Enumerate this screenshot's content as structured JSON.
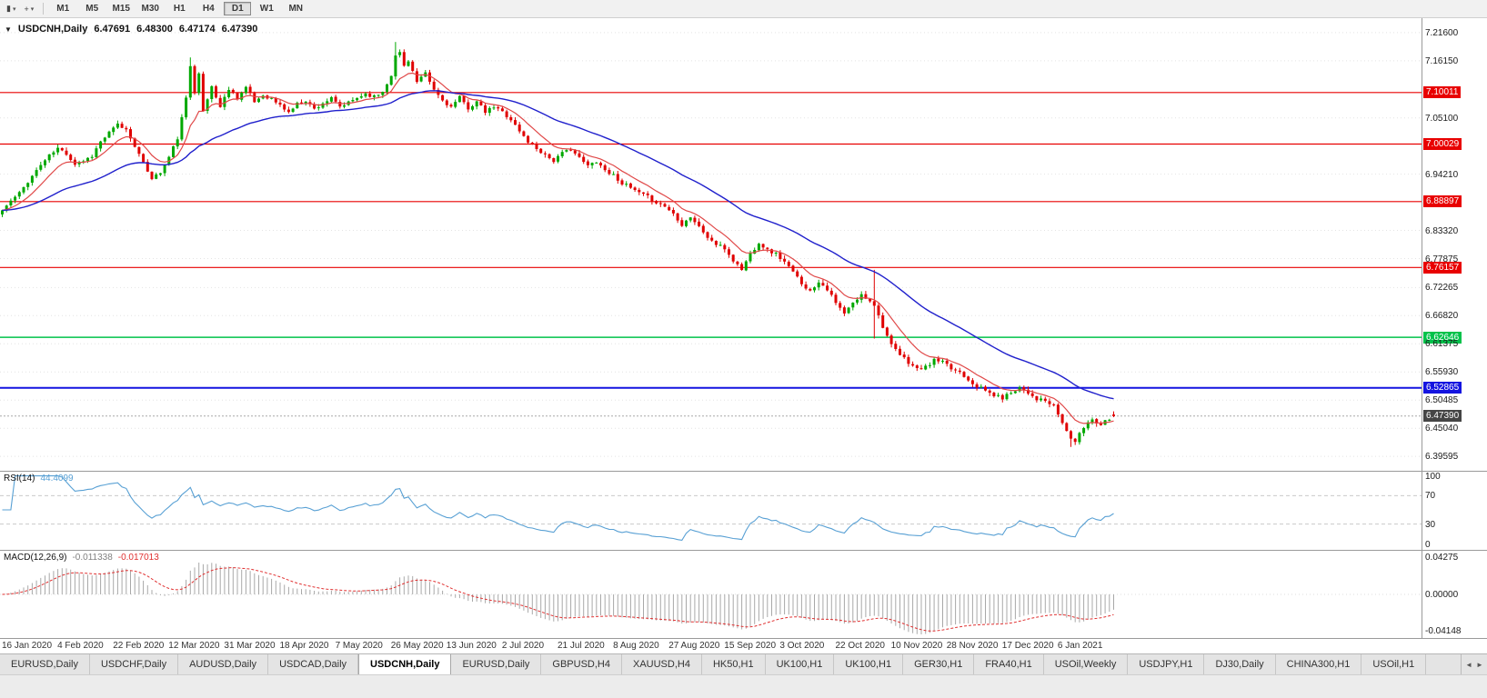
{
  "toolbar": {
    "icon1_glyph": "▮",
    "icon2_glyph": "+",
    "caret_glyph": "▾",
    "timeframes": [
      "M1",
      "M5",
      "M15",
      "M30",
      "H1",
      "H4",
      "D1",
      "W1",
      "MN"
    ],
    "active_timeframe": "D1"
  },
  "chart": {
    "collapse_glyph": "▼",
    "symbol_title": "USDCNH,Daily",
    "open": "6.47691",
    "high": "6.48300",
    "low": "6.47174",
    "close": "6.47390"
  },
  "indicators": {
    "rsi_label": "RSI(14)",
    "rsi_value": "44.4099",
    "macd_label": "MACD(12,26,9)",
    "macd_value_main": "-0.011338",
    "macd_value_signal": "-0.017013"
  },
  "tabs": {
    "items": [
      "EURUSD,Daily",
      "USDCHF,Daily",
      "AUDUSD,Daily",
      "USDCAD,Daily",
      "USDCNH,Daily",
      "EURUSD,Daily",
      "GBPUSD,H4",
      "XAUUSD,H4",
      "HK50,H1",
      "UK100,H1",
      "UK100,H1",
      "GER30,H1",
      "FRA40,H1",
      "USOil,Weekly",
      "USDJPY,H1",
      "DJ30,Daily",
      "CHINA300,H1",
      "USOil,H1"
    ],
    "active_index": 4,
    "scroll_left_glyph": "◄",
    "scroll_right_glyph": "►"
  },
  "chart_data": {
    "type": "candlestick",
    "symbol": "USDCNH",
    "timeframe": "Daily",
    "ohlc": {
      "open": 6.47691,
      "high": 6.483,
      "low": 6.47174,
      "close": 6.4739
    },
    "current_price": 6.4739,
    "price_scale": {
      "top": 7.244,
      "bottom": 6.368
    },
    "grid_color": "#e4e4e4",
    "tag_colors": {
      "red": "#e80000",
      "green": "#00c24a",
      "blue": "#1414e0",
      "current": "#454545"
    },
    "y_axis_labels": [
      {
        "text": "7.21600",
        "value": 7.216,
        "type": "plain"
      },
      {
        "text": "7.16150",
        "value": 7.1615,
        "type": "plain"
      },
      {
        "text": "7.10011",
        "value": 7.10011,
        "type": "red"
      },
      {
        "text": "7.05100",
        "value": 7.051,
        "type": "plain"
      },
      {
        "text": "7.00029",
        "value": 7.00029,
        "type": "red"
      },
      {
        "text": "6.94210",
        "value": 6.9421,
        "type": "plain"
      },
      {
        "text": "6.88897",
        "value": 6.88897,
        "type": "red"
      },
      {
        "text": "6.83320",
        "value": 6.8332,
        "type": "plain"
      },
      {
        "text": "6.77875",
        "value": 6.77875,
        "type": "plain"
      },
      {
        "text": "6.76157",
        "value": 6.76157,
        "type": "red"
      },
      {
        "text": "6.72265",
        "value": 6.72265,
        "type": "plain"
      },
      {
        "text": "6.66820",
        "value": 6.6682,
        "type": "plain"
      },
      {
        "text": "6.62646",
        "value": 6.62646,
        "type": "green"
      },
      {
        "text": "6.61375",
        "value": 6.61375,
        "type": "plain"
      },
      {
        "text": "6.55930",
        "value": 6.5593,
        "type": "plain"
      },
      {
        "text": "6.52865",
        "value": 6.52865,
        "type": "blue"
      },
      {
        "text": "6.50485",
        "value": 6.50485,
        "type": "plain"
      },
      {
        "text": "6.47390",
        "value": 6.4739,
        "type": "current"
      },
      {
        "text": "6.45040",
        "value": 6.4504,
        "type": "plain"
      },
      {
        "text": "6.39595",
        "value": 6.39595,
        "type": "plain"
      }
    ],
    "hlines": [
      {
        "value": 7.10011,
        "color": "#e80000",
        "width": 1.2
      },
      {
        "value": 7.00029,
        "color": "#e80000",
        "width": 1.2
      },
      {
        "value": 6.88897,
        "color": "#e80000",
        "width": 1.2
      },
      {
        "value": 6.76157,
        "color": "#e80000",
        "width": 1.2
      },
      {
        "value": 6.62646,
        "color": "#00c24a",
        "width": 1.5
      },
      {
        "value": 6.52865,
        "color": "#1414e0",
        "width": 2
      },
      {
        "value": 6.4739,
        "color": "#a8a8a8",
        "width": 1,
        "dash": "2,2"
      }
    ],
    "x_labels": [
      "16 Jan 2020",
      "4 Feb 2020",
      "22 Feb 2020",
      "12 Mar 2020",
      "31 Mar 2020",
      "18 Apr 2020",
      "7 May 2020",
      "26 May 2020",
      "13 Jun 2020",
      "2 Jul 2020",
      "21 Jul 2020",
      "8 Aug 2020",
      "27 Aug 2020",
      "15 Sep 2020",
      "3 Oct 2020",
      "22 Oct 2020",
      "10 Nov 2020",
      "28 Nov 2020",
      "17 Dec 2020",
      "6 Jan 2021"
    ],
    "candles_per_xlabel": 13,
    "candles": {
      "count": 261,
      "spacing": 4.7,
      "body_width": 3,
      "noise_amp": 0.0035,
      "seed": 11,
      "up_color": "#00a800",
      "down_color": "#e00000",
      "anchors": [
        [
          0,
          6.872
        ],
        [
          2,
          6.89
        ],
        [
          4,
          6.905
        ],
        [
          6,
          6.928
        ],
        [
          9,
          6.96
        ],
        [
          11,
          6.978
        ],
        [
          13,
          6.992
        ],
        [
          15,
          6.982
        ],
        [
          17,
          6.962
        ],
        [
          19,
          6.968
        ],
        [
          21,
          6.978
        ],
        [
          23,
          7.005
        ],
        [
          25,
          7.022
        ],
        [
          27,
          7.038
        ],
        [
          29,
          7.028
        ],
        [
          31,
          6.998
        ],
        [
          33,
          6.962
        ],
        [
          35,
          6.935
        ],
        [
          37,
          6.945
        ],
        [
          39,
          6.975
        ],
        [
          41,
          7.012
        ],
        [
          43,
          7.088
        ],
        [
          44,
          7.152
        ],
        [
          45,
          7.102
        ],
        [
          46,
          7.14
        ],
        [
          47,
          7.062
        ],
        [
          49,
          7.112
        ],
        [
          51,
          7.072
        ],
        [
          53,
          7.108
        ],
        [
          55,
          7.09
        ],
        [
          57,
          7.11
        ],
        [
          59,
          7.082
        ],
        [
          61,
          7.095
        ],
        [
          63,
          7.088
        ],
        [
          65,
          7.075
        ],
        [
          67,
          7.062
        ],
        [
          69,
          7.078
        ],
        [
          71,
          7.085
        ],
        [
          73,
          7.068
        ],
        [
          75,
          7.08
        ],
        [
          77,
          7.088
        ],
        [
          79,
          7.072
        ],
        [
          81,
          7.08
        ],
        [
          83,
          7.09
        ],
        [
          85,
          7.098
        ],
        [
          87,
          7.092
        ],
        [
          89,
          7.102
        ],
        [
          91,
          7.135
        ],
        [
          92,
          7.17
        ],
        [
          93,
          7.178
        ],
        [
          94,
          7.152
        ],
        [
          95,
          7.163
        ],
        [
          97,
          7.12
        ],
        [
          99,
          7.136
        ],
        [
          101,
          7.105
        ],
        [
          103,
          7.085
        ],
        [
          105,
          7.072
        ],
        [
          107,
          7.09
        ],
        [
          109,
          7.07
        ],
        [
          111,
          7.082
        ],
        [
          113,
          7.062
        ],
        [
          115,
          7.072
        ],
        [
          117,
          7.063
        ],
        [
          119,
          7.048
        ],
        [
          121,
          7.025
        ],
        [
          123,
          7.005
        ],
        [
          125,
          6.992
        ],
        [
          127,
          6.98
        ],
        [
          129,
          6.968
        ],
        [
          131,
          6.982
        ],
        [
          133,
          6.992
        ],
        [
          135,
          6.973
        ],
        [
          137,
          6.958
        ],
        [
          139,
          6.968
        ],
        [
          141,
          6.95
        ],
        [
          143,
          6.94
        ],
        [
          145,
          6.925
        ],
        [
          147,
          6.915
        ],
        [
          149,
          6.905
        ],
        [
          151,
          6.898
        ],
        [
          153,
          6.888
        ],
        [
          155,
          6.88
        ],
        [
          157,
          6.866
        ],
        [
          159,
          6.845
        ],
        [
          161,
          6.86
        ],
        [
          163,
          6.84
        ],
        [
          165,
          6.82
        ],
        [
          167,
          6.806
        ],
        [
          169,
          6.798
        ],
        [
          171,
          6.775
        ],
        [
          173,
          6.758
        ],
        [
          175,
          6.788
        ],
        [
          177,
          6.81
        ],
        [
          179,
          6.795
        ],
        [
          181,
          6.788
        ],
        [
          183,
          6.772
        ],
        [
          185,
          6.752
        ],
        [
          187,
          6.732
        ],
        [
          189,
          6.715
        ],
        [
          191,
          6.735
        ],
        [
          193,
          6.72
        ],
        [
          195,
          6.692
        ],
        [
          197,
          6.672
        ],
        [
          199,
          6.692
        ],
        [
          201,
          6.708
        ],
        [
          203,
          6.698
        ],
        [
          204,
          6.69
        ],
        [
          205,
          6.668
        ],
        [
          206,
          6.648
        ],
        [
          208,
          6.61
        ],
        [
          210,
          6.592
        ],
        [
          212,
          6.578
        ],
        [
          214,
          6.565
        ],
        [
          216,
          6.568
        ],
        [
          218,
          6.582
        ],
        [
          220,
          6.578
        ],
        [
          222,
          6.565
        ],
        [
          224,
          6.56
        ],
        [
          226,
          6.545
        ],
        [
          228,
          6.532
        ],
        [
          230,
          6.523
        ],
        [
          232,
          6.514
        ],
        [
          234,
          6.509
        ],
        [
          236,
          6.52
        ],
        [
          238,
          6.53
        ],
        [
          240,
          6.52
        ],
        [
          242,
          6.507
        ],
        [
          244,
          6.503
        ],
        [
          246,
          6.492
        ],
        [
          247,
          6.478
        ],
        [
          248,
          6.46
        ],
        [
          249,
          6.445
        ],
        [
          250,
          6.432
        ],
        [
          251,
          6.424
        ],
        [
          252,
          6.438
        ],
        [
          253,
          6.452
        ],
        [
          254,
          6.462
        ],
        [
          255,
          6.468
        ],
        [
          256,
          6.462
        ],
        [
          257,
          6.458
        ],
        [
          258,
          6.465
        ],
        [
          259,
          6.47
        ],
        [
          260,
          6.4739
        ]
      ],
      "overrides": [
        {
          "i": 44,
          "high": 7.168
        },
        {
          "i": 92,
          "high": 7.198
        },
        {
          "i": 204,
          "high": 6.757,
          "low": 6.624
        },
        {
          "i": 250,
          "low": 6.414
        }
      ]
    },
    "moving_averages": [
      {
        "period": 10,
        "color": "#e04848",
        "width": 1.2
      },
      {
        "period": 40,
        "color": "#2020cc",
        "width": 1.4
      }
    ],
    "rsi": {
      "period": 14,
      "value": 44.4099,
      "color": "#58a0d4",
      "levels": [
        70,
        30
      ],
      "axis_labels": [
        {
          "text": "100",
          "value": 100
        },
        {
          "text": "70",
          "value": 70
        },
        {
          "text": "30",
          "value": 30
        },
        {
          "text": "0",
          "value": 0
        }
      ]
    },
    "macd": {
      "fast": 12,
      "slow": 26,
      "signal_period": 9,
      "main": -0.011338,
      "signal": -0.017013,
      "scale_max": 0.0455,
      "histogram_color": "#a8a8a8",
      "signal_color": "#e03030",
      "axis_labels": [
        {
          "text": "0.04275",
          "value": 0.04275
        },
        {
          "text": "0.00000",
          "value": 0
        },
        {
          "text": "-0.04148",
          "value": -0.04148
        }
      ]
    }
  }
}
